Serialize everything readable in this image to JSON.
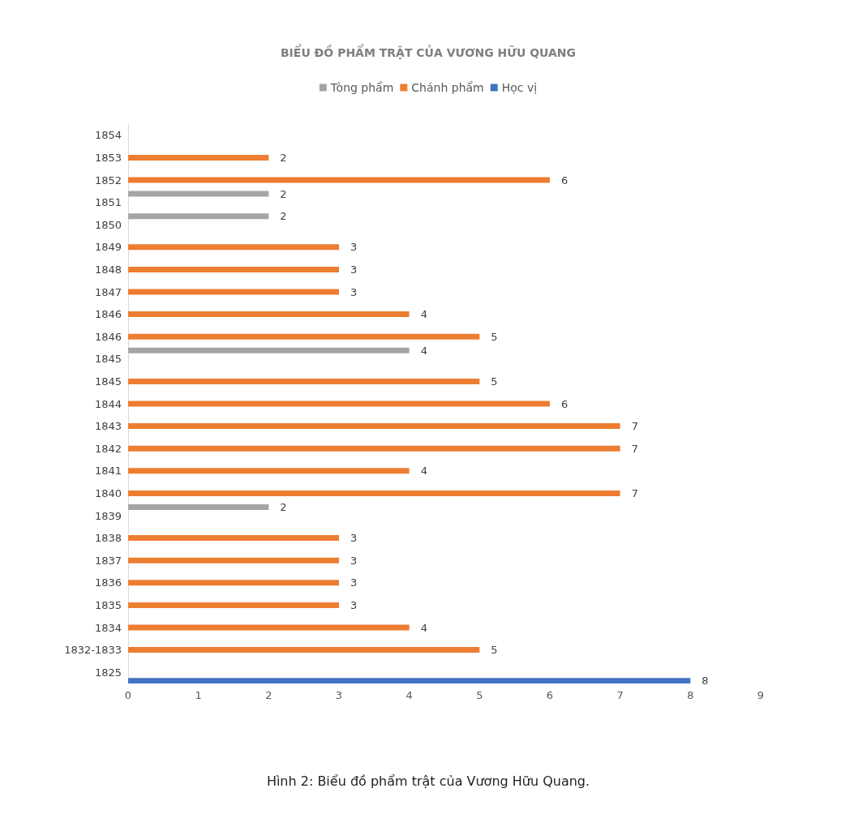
{
  "chart_data": {
    "type": "bar",
    "orientation": "horizontal",
    "title": "BIỂU ĐỒ PHẨM TRẬT CỦA VƯƠNG HỮU QUANG",
    "categories": [
      "1854",
      "1853",
      "1852",
      "1851",
      "1850",
      "1849",
      "1848",
      "1847",
      "1846",
      "1846",
      "1845",
      "1845",
      "1844",
      "1843",
      "1842",
      "1841",
      "1840",
      "1839",
      "1838",
      "1837",
      "1836",
      "1835",
      "1834",
      "1832-1833",
      "1825"
    ],
    "series": [
      {
        "name": "Tòng phẩm",
        "color": "#a5a5a5",
        "values": [
          null,
          null,
          null,
          2,
          2,
          null,
          null,
          null,
          null,
          null,
          4,
          null,
          null,
          null,
          null,
          null,
          null,
          2,
          null,
          null,
          null,
          null,
          null,
          null,
          null
        ]
      },
      {
        "name": "Chánh phẩm",
        "color": "#ed7d31",
        "values": [
          null,
          2,
          6,
          null,
          null,
          3,
          3,
          3,
          4,
          5,
          null,
          5,
          6,
          7,
          7,
          4,
          7,
          null,
          3,
          3,
          3,
          3,
          4,
          5,
          null
        ]
      },
      {
        "name": "Học vị",
        "color": "#4472c4",
        "values": [
          null,
          null,
          null,
          null,
          null,
          null,
          null,
          null,
          null,
          null,
          null,
          null,
          null,
          null,
          null,
          null,
          null,
          null,
          null,
          null,
          null,
          null,
          null,
          null,
          8
        ]
      }
    ],
    "xlim": [
      0,
      9
    ],
    "xticks": [
      0,
      1,
      2,
      3,
      4,
      5,
      6,
      7,
      8,
      9
    ],
    "grid": false,
    "legend": "top",
    "data_labels": true,
    "annotations": [
      "Hình 2: Biểu đồ phẩm trật của Vương Hữu Quang."
    ]
  }
}
